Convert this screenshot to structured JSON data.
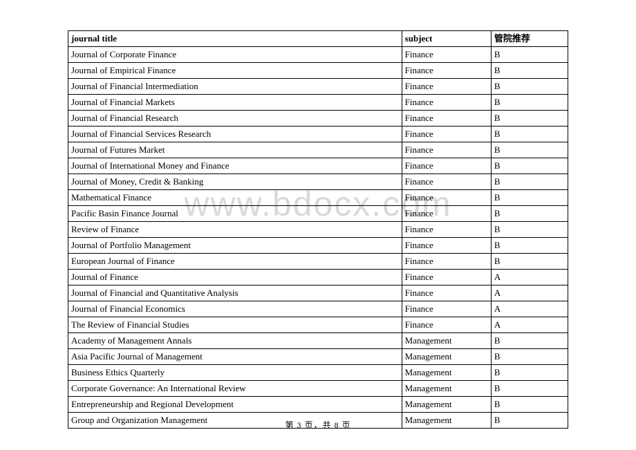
{
  "watermark": "www.bdocx.com",
  "footer": "第 3 页，共 8 页",
  "table": {
    "columns": [
      "journal title",
      "subject",
      "管院推荐"
    ],
    "rows": [
      [
        "Journal of Corporate Finance",
        "Finance",
        "B"
      ],
      [
        "Journal of Empirical Finance",
        "Finance",
        "B"
      ],
      [
        "Journal of Financial Intermediation",
        "Finance",
        "B"
      ],
      [
        "Journal of Financial Markets",
        "Finance",
        "B"
      ],
      [
        "Journal of Financial Research",
        "Finance",
        "B"
      ],
      [
        "Journal of Financial Services Research",
        "Finance",
        "B"
      ],
      [
        "Journal of Futures Market",
        "Finance",
        "B"
      ],
      [
        "Journal of International Money and Finance",
        "Finance",
        "B"
      ],
      [
        "Journal of Money, Credit & Banking",
        "Finance",
        "B"
      ],
      [
        "Mathematical Finance",
        "Finance",
        "B"
      ],
      [
        "Pacific Basin Finance Journal",
        "Finance",
        "B"
      ],
      [
        "Review of Finance",
        "Finance",
        "B"
      ],
      [
        "Journal of Portfolio Management",
        "Finance",
        "B"
      ],
      [
        "European Journal of Finance",
        "Finance",
        "B"
      ],
      [
        "Journal of Finance",
        "Finance",
        "A"
      ],
      [
        "Journal of Financial and Quantitative Analysis",
        "Finance",
        "A"
      ],
      [
        "Journal of Financial Economics",
        "Finance",
        "A"
      ],
      [
        "The Review of Financial Studies",
        "Finance",
        "A"
      ],
      [
        "Academy of Management Annals",
        "Management",
        "B"
      ],
      [
        "Asia Pacific Journal of Management",
        "Management",
        "B"
      ],
      [
        "Business Ethics Quarterly",
        "Management",
        "B"
      ],
      [
        "Corporate Governance: An International Review",
        "Management",
        "B"
      ],
      [
        "Entrepreneurship and Regional Development",
        "Management",
        "B"
      ],
      [
        "Group and Organization Management",
        "Management",
        "B"
      ]
    ]
  }
}
